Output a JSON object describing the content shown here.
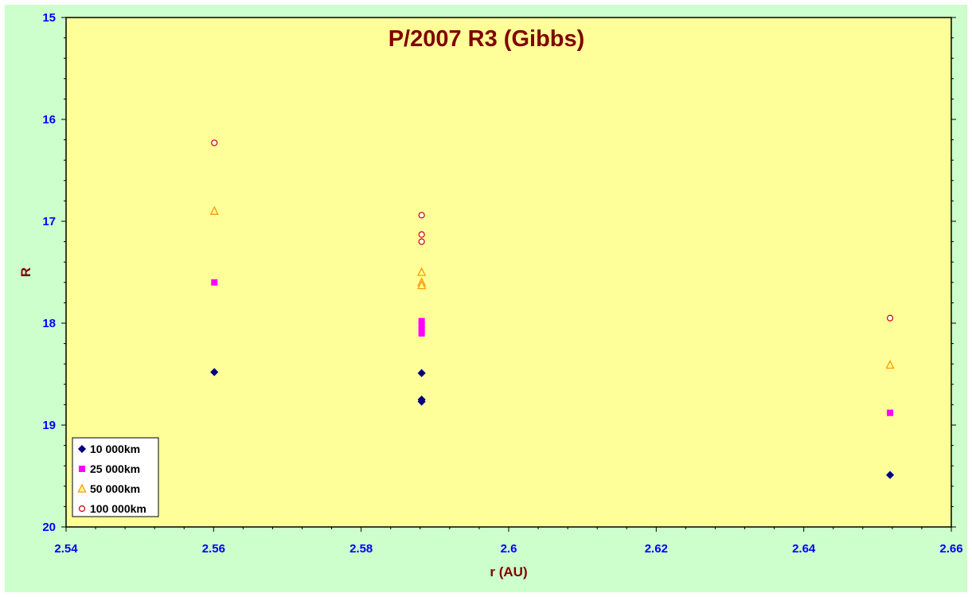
{
  "chart_data": {
    "type": "scatter",
    "title": "P/2007 R3 (Gibbs)",
    "xlabel": "r (AU)",
    "ylabel": "R",
    "xlim": [
      2.54,
      2.66
    ],
    "ylim": [
      15,
      20
    ],
    "y_inverted": true,
    "x_ticks": [
      "2.54",
      "2.56",
      "2.58",
      "2.6",
      "2.62",
      "2.64",
      "2.66"
    ],
    "y_ticks": [
      "15",
      "16",
      "17",
      "18",
      "19",
      "20"
    ],
    "grid": false,
    "legend_position": "bottom-left",
    "colors": {
      "plot_bg": "#ffff99",
      "outer_bg": "#ccffcc",
      "title": "#800000",
      "ticks": "#0000ff"
    },
    "series": [
      {
        "name": "10 000km",
        "marker": "diamond",
        "color": "#000080",
        "points": [
          [
            2.5601,
            18.48
          ],
          [
            2.5882,
            18.49
          ],
          [
            2.5882,
            18.75
          ],
          [
            2.5882,
            18.77
          ],
          [
            2.6517,
            19.49
          ]
        ]
      },
      {
        "name": "25 000km",
        "marker": "square",
        "color": "#ff00ff",
        "points": [
          [
            2.5601,
            17.6
          ],
          [
            2.5882,
            17.98
          ],
          [
            2.5882,
            18.02
          ],
          [
            2.5882,
            18.06
          ],
          [
            2.5882,
            18.1
          ],
          [
            2.6517,
            18.88
          ]
        ]
      },
      {
        "name": "50 000km",
        "marker": "triangle",
        "color": "#ff9900",
        "points": [
          [
            2.5601,
            16.9
          ],
          [
            2.5882,
            17.5
          ],
          [
            2.5882,
            17.6
          ],
          [
            2.5882,
            17.63
          ],
          [
            2.6517,
            18.41
          ]
        ]
      },
      {
        "name": "100 000km",
        "marker": "circle",
        "color": "#cc0000",
        "points": [
          [
            2.5601,
            16.23
          ],
          [
            2.5882,
            16.94
          ],
          [
            2.5882,
            17.13
          ],
          [
            2.5882,
            17.2
          ],
          [
            2.6517,
            17.95
          ]
        ]
      }
    ]
  }
}
